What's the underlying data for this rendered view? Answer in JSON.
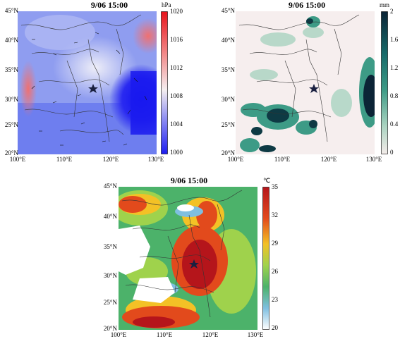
{
  "panels": [
    {
      "id": "pressure",
      "title": "9/06  15:00",
      "unit": "hPa",
      "colorbar_ticks": [
        "1020",
        "1016",
        "1012",
        "1008",
        "1004",
        "1000"
      ],
      "colorbar_colors": [
        "#e8141c",
        "#f28a8a",
        "#f4eef0",
        "#8f8ff2",
        "#1c1cf0"
      ],
      "lat_labels": [
        "45°N",
        "40°N",
        "35°N",
        "30°N",
        "25°N",
        "20°N"
      ],
      "lon_labels": [
        "100°E",
        "110°E",
        "120°E",
        "130°E"
      ]
    },
    {
      "id": "precip",
      "title": "9/06  15:00",
      "unit": "mm",
      "colorbar_ticks": [
        "2",
        "1.6",
        "1.2",
        "0.8",
        "0.4",
        "0"
      ],
      "colorbar_colors": [
        "#0b2436",
        "#176b6a",
        "#3d9b86",
        "#a9d3c0",
        "#f4ecea"
      ],
      "lat_labels": [
        "45°N",
        "40°N",
        "35°N",
        "30°N",
        "25°N",
        "20°N"
      ],
      "lon_labels": [
        "100°E",
        "110°E",
        "120°E",
        "130°E"
      ]
    },
    {
      "id": "temperature",
      "title": "9/06  15:00",
      "unit": "℃",
      "colorbar_ticks": [
        "35",
        "32",
        "29",
        "26",
        "23",
        "20"
      ],
      "colorbar_colors": [
        "#b5151b",
        "#e24a1c",
        "#f3c126",
        "#9fd24c",
        "#4cb26a",
        "#7fbfe0",
        "#ffffff"
      ],
      "lat_labels": [
        "45°N",
        "40°N",
        "35°N",
        "30°N",
        "25°N",
        "20°N"
      ],
      "lon_labels": [
        "100°E",
        "110°E",
        "120°E",
        "130°E"
      ]
    }
  ]
}
